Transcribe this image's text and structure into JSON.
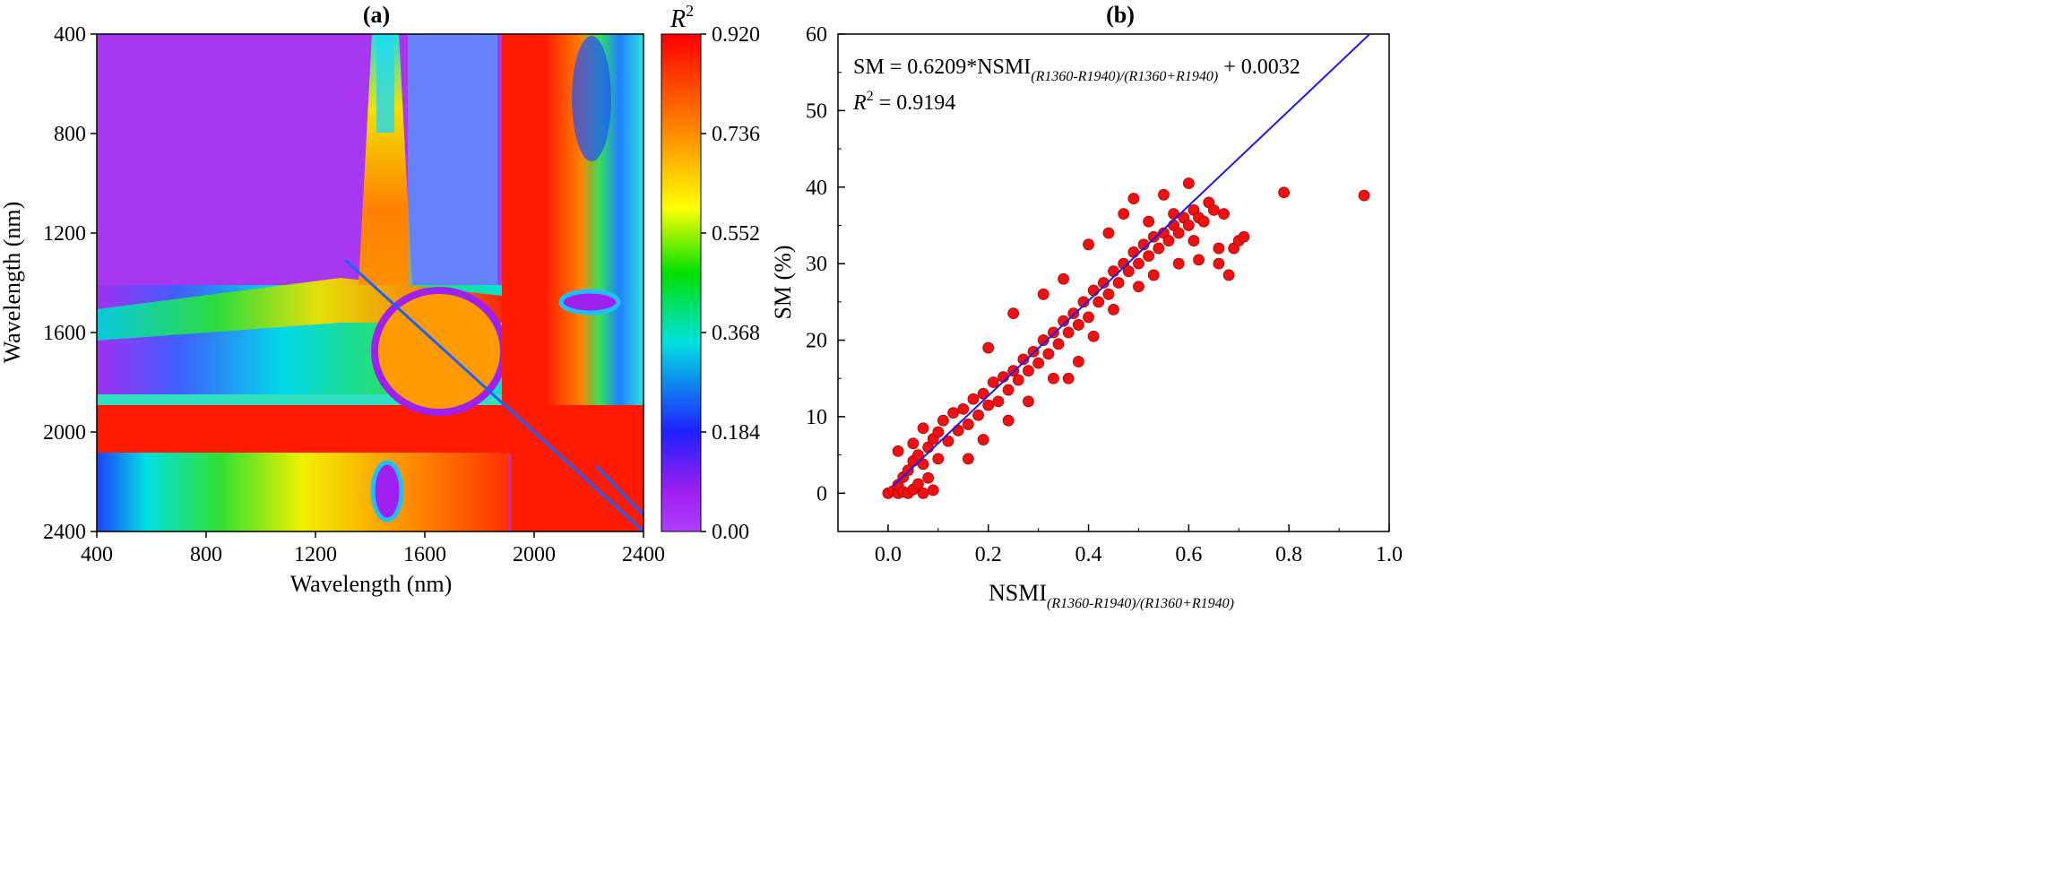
{
  "panel_a": {
    "label": "(a)",
    "colorbar_title": "R",
    "colorbar_title_sup": "2",
    "colorbar_ticks": [
      "0.920",
      "0.736",
      "0.552",
      "0.368",
      "0.184",
      "0.00"
    ],
    "colorbar_colors": [
      "#ff0000",
      "#ff8c00",
      "#ffff00",
      "#00e000",
      "#00e0e0",
      "#2020ff",
      "#a020f0",
      "#b040ff"
    ]
  },
  "panel_b": {
    "label": "(b)",
    "equation_prefix": "SM = 0.6209*NSMI",
    "equation_sub": "(R1360-R1940)/(R1360+R1940)",
    "equation_suffix": " + 0.0032",
    "r2_prefix": "R",
    "r2_sup": "2",
    "r2_suffix": " = 0.9194",
    "xlabel_main": "NSMI",
    "xlabel_sub": "(R1360-R1940)/(R1360+R1940)"
  },
  "chart_data": [
    {
      "type": "heatmap",
      "title": "(a)",
      "xlabel": "Wavelength (nm)",
      "ylabel": "Wavelength (nm)",
      "x_ticks": [
        "400",
        "800",
        "1200",
        "1600",
        "2000",
        "2400"
      ],
      "y_ticks": [
        "400",
        "800",
        "1200",
        "1600",
        "2000",
        "2400"
      ],
      "xlim": [
        400,
        2400
      ],
      "ylim": [
        400,
        2400
      ],
      "colorbar_label": "R2",
      "colorbar_range": [
        0.0,
        0.92
      ],
      "regions": [
        {
          "x": [
            400,
            1350
          ],
          "y": [
            400,
            1400
          ],
          "value": 0.08
        },
        {
          "x": [
            400,
            1400
          ],
          "y": [
            1400,
            1500
          ],
          "value": 0.45
        },
        {
          "x": [
            1400,
            1550
          ],
          "y": [
            400,
            1350
          ],
          "value": 0.62
        },
        {
          "x": [
            1900,
            2400
          ],
          "y": [
            1900,
            2400
          ],
          "value": 0.85
        },
        {
          "x": [
            400,
            1900
          ],
          "y": [
            1920,
            2100
          ],
          "value": 0.9
        },
        {
          "x": [
            1900,
            2050
          ],
          "y": [
            400,
            1900
          ],
          "value": 0.9
        }
      ]
    },
    {
      "type": "scatter",
      "title": "(b)",
      "xlabel": "NSMI(R1360-R1940)/(R1360+R1940)",
      "ylabel": "SM (%)",
      "xlim": [
        -0.1,
        1.0
      ],
      "ylim": [
        -5,
        60
      ],
      "x_ticks": [
        "0.0",
        "0.2",
        "0.4",
        "0.6",
        "0.8",
        "1.0"
      ],
      "y_ticks": [
        "0",
        "10",
        "20",
        "30",
        "40",
        "50",
        "60"
      ],
      "fit_line": {
        "slope": 62.09,
        "intercept": 0.32,
        "x_range": [
          0.01,
          0.96
        ]
      },
      "points": [
        [
          0.0,
          0.0
        ],
        [
          0.01,
          0.3
        ],
        [
          0.02,
          0.0
        ],
        [
          0.02,
          1.1
        ],
        [
          0.03,
          0.2
        ],
        [
          0.03,
          2.1
        ],
        [
          0.04,
          0.0
        ],
        [
          0.04,
          3.0
        ],
        [
          0.05,
          0.5
        ],
        [
          0.05,
          4.2
        ],
        [
          0.06,
          1.2
        ],
        [
          0.06,
          5.0
        ],
        [
          0.07,
          0.0
        ],
        [
          0.07,
          3.8
        ],
        [
          0.08,
          2.0
        ],
        [
          0.08,
          6.0
        ],
        [
          0.09,
          0.4
        ],
        [
          0.09,
          7.1
        ],
        [
          0.1,
          4.5
        ],
        [
          0.1,
          8.0
        ],
        [
          0.02,
          5.5
        ],
        [
          0.05,
          6.5
        ],
        [
          0.07,
          8.5
        ],
        [
          0.11,
          9.5
        ],
        [
          0.12,
          6.8
        ],
        [
          0.13,
          10.5
        ],
        [
          0.14,
          8.2
        ],
        [
          0.15,
          11.0
        ],
        [
          0.16,
          9.0
        ],
        [
          0.17,
          12.3
        ],
        [
          0.18,
          10.2
        ],
        [
          0.19,
          13.0
        ],
        [
          0.2,
          11.5
        ],
        [
          0.21,
          14.5
        ],
        [
          0.22,
          12.0
        ],
        [
          0.23,
          15.2
        ],
        [
          0.24,
          13.5
        ],
        [
          0.25,
          16.0
        ],
        [
          0.26,
          14.8
        ],
        [
          0.27,
          17.5
        ],
        [
          0.28,
          16.0
        ],
        [
          0.29,
          18.5
        ],
        [
          0.3,
          17.0
        ],
        [
          0.31,
          20.0
        ],
        [
          0.32,
          18.2
        ],
        [
          0.33,
          21.0
        ],
        [
          0.34,
          19.5
        ],
        [
          0.35,
          22.5
        ],
        [
          0.36,
          21.0
        ],
        [
          0.37,
          23.5
        ],
        [
          0.38,
          22.0
        ],
        [
          0.39,
          25.0
        ],
        [
          0.4,
          23.0
        ],
        [
          0.41,
          26.5
        ],
        [
          0.42,
          25.0
        ],
        [
          0.43,
          27.5
        ],
        [
          0.44,
          26.0
        ],
        [
          0.45,
          29.0
        ],
        [
          0.46,
          27.5
        ],
        [
          0.47,
          30.0
        ],
        [
          0.48,
          29.0
        ],
        [
          0.49,
          31.5
        ],
        [
          0.5,
          30.0
        ],
        [
          0.51,
          32.5
        ],
        [
          0.52,
          31.0
        ],
        [
          0.53,
          33.5
        ],
        [
          0.54,
          32.0
        ],
        [
          0.55,
          34.0
        ],
        [
          0.56,
          33.0
        ],
        [
          0.57,
          35.0
        ],
        [
          0.58,
          34.0
        ],
        [
          0.59,
          36.0
        ],
        [
          0.6,
          35.0
        ],
        [
          0.61,
          37.0
        ],
        [
          0.62,
          36.0
        ],
        [
          0.63,
          35.5
        ],
        [
          0.64,
          38.0
        ],
        [
          0.65,
          37.0
        ],
        [
          0.66,
          32.0
        ],
        [
          0.67,
          36.5
        ],
        [
          0.68,
          28.5
        ],
        [
          0.69,
          32.0
        ],
        [
          0.7,
          33.0
        ],
        [
          0.71,
          33.5
        ],
        [
          0.6,
          40.5
        ],
        [
          0.55,
          39.0
        ],
        [
          0.49,
          38.5
        ],
        [
          0.79,
          39.3
        ],
        [
          0.95,
          38.9
        ],
        [
          0.16,
          4.5
        ],
        [
          0.19,
          7.0
        ],
        [
          0.24,
          9.5
        ],
        [
          0.28,
          12.0
        ],
        [
          0.33,
          15.0
        ],
        [
          0.36,
          15.0
        ],
        [
          0.38,
          17.2
        ],
        [
          0.41,
          20.5
        ],
        [
          0.45,
          24.0
        ],
        [
          0.5,
          27.0
        ],
        [
          0.53,
          28.5
        ],
        [
          0.58,
          30.0
        ],
        [
          0.62,
          30.5
        ],
        [
          0.66,
          30.0
        ],
        [
          0.25,
          23.5
        ],
        [
          0.2,
          19.0
        ],
        [
          0.31,
          26.0
        ],
        [
          0.35,
          28.0
        ],
        [
          0.44,
          34.0
        ],
        [
          0.4,
          32.5
        ],
        [
          0.47,
          36.5
        ],
        [
          0.52,
          35.5
        ],
        [
          0.57,
          36.5
        ],
        [
          0.61,
          33.0
        ]
      ]
    }
  ]
}
